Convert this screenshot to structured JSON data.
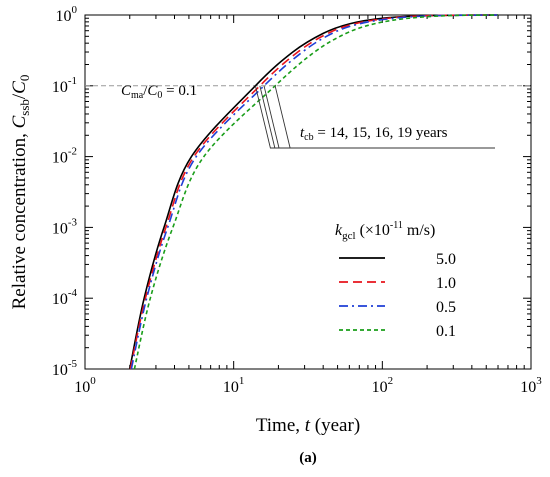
{
  "chart_data": {
    "type": "line",
    "xscale": "log",
    "yscale": "log",
    "xlim": [
      1,
      1000
    ],
    "ylim": [
      1e-05,
      1
    ],
    "xlabel": {
      "text": "Time, ",
      "italic": "t",
      "tail": " (year)"
    },
    "ylabel": {
      "text": "Relative concentration, ",
      "c1": "C",
      "s1": "ssb",
      "c2": "C",
      "s2": "0"
    },
    "x_ticks": [
      {
        "value": 1,
        "base": "10",
        "exp": "0"
      },
      {
        "value": 10,
        "base": "10",
        "exp": "1"
      },
      {
        "value": 100,
        "base": "10",
        "exp": "2"
      },
      {
        "value": 1000,
        "base": "10",
        "exp": "3"
      }
    ],
    "y_ticks": [
      {
        "value": 1e-05,
        "base": "10",
        "exp": "-5"
      },
      {
        "value": 0.0001,
        "base": "10",
        "exp": "-4"
      },
      {
        "value": 0.001,
        "base": "10",
        "exp": "-3"
      },
      {
        "value": 0.01,
        "base": "10",
        "exp": "-2"
      },
      {
        "value": 0.1,
        "base": "10",
        "exp": "-1"
      },
      {
        "value": 1,
        "base": "10",
        "exp": "0"
      }
    ],
    "threshold": {
      "y": 0.1,
      "label_c": "C",
      "label_sub": "ma",
      "label_mid": "/",
      "label_c2": "C",
      "label_sub2": "0",
      "label_tail": " = 0.1"
    },
    "annotation": {
      "t": "t",
      "sub": "cb",
      "tail": " = 14, 15, 16, 19 years",
      "target_x": [
        14,
        15,
        16,
        19
      ]
    },
    "legend": {
      "title_k": "k",
      "title_sub": "gcl",
      "title_pre": " (×10",
      "title_exp": "-11",
      "title_post": " m/s)",
      "position": "lower-right"
    },
    "series": [
      {
        "name": "5.0",
        "color": "#000000",
        "dash": "solid",
        "points": [
          [
            2.0,
            1e-05
          ],
          [
            2.5,
            0.0001
          ],
          [
            3.4,
            0.001
          ],
          [
            5.2,
            0.01
          ],
          [
            14,
            0.1
          ],
          [
            25,
            0.3
          ],
          [
            40,
            0.55
          ],
          [
            60,
            0.75
          ],
          [
            100,
            0.9
          ],
          [
            200,
            0.98
          ],
          [
            600,
            1.0
          ]
        ]
      },
      {
        "name": "1.0",
        "color": "#e8141c",
        "dash": "dashed",
        "points": [
          [
            2.02,
            1e-05
          ],
          [
            2.55,
            0.0001
          ],
          [
            3.5,
            0.001
          ],
          [
            5.4,
            0.01
          ],
          [
            15,
            0.1
          ],
          [
            27,
            0.3
          ],
          [
            43,
            0.55
          ],
          [
            65,
            0.75
          ],
          [
            110,
            0.9
          ],
          [
            210,
            0.98
          ],
          [
            600,
            1.0
          ]
        ]
      },
      {
        "name": "0.5",
        "color": "#1f3fd6",
        "dash": "dashdot",
        "points": [
          [
            2.05,
            1e-05
          ],
          [
            2.6,
            0.0001
          ],
          [
            3.6,
            0.001
          ],
          [
            5.6,
            0.01
          ],
          [
            16,
            0.1
          ],
          [
            29,
            0.3
          ],
          [
            46,
            0.55
          ],
          [
            70,
            0.75
          ],
          [
            120,
            0.9
          ],
          [
            230,
            0.98
          ],
          [
            600,
            1.0
          ]
        ]
      },
      {
        "name": "0.1",
        "color": "#1a9e1a",
        "dash": "dotted",
        "points": [
          [
            2.15,
            1e-05
          ],
          [
            2.75,
            0.0001
          ],
          [
            3.9,
            0.001
          ],
          [
            6.3,
            0.01
          ],
          [
            19,
            0.1
          ],
          [
            35,
            0.3
          ],
          [
            57,
            0.55
          ],
          [
            88,
            0.75
          ],
          [
            150,
            0.9
          ],
          [
            280,
            0.98
          ],
          [
            600,
            1.0
          ]
        ]
      }
    ]
  },
  "caption": "(a)"
}
